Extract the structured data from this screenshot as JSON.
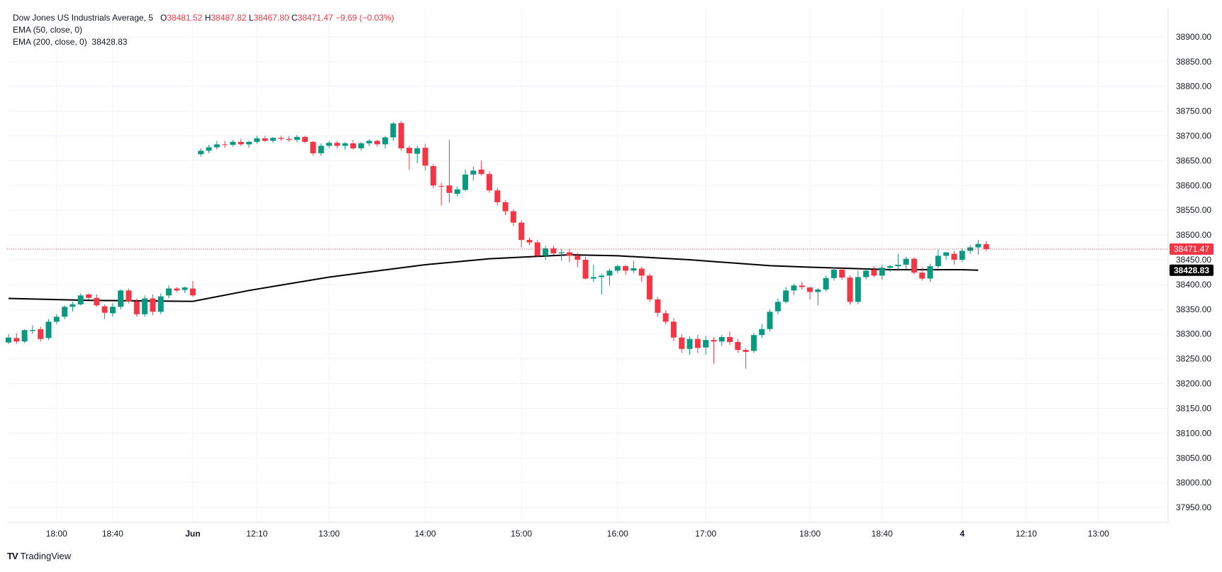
{
  "header": {
    "symbol": "Dow Jones US Industrials Average",
    "interval": "5",
    "open_label": "O",
    "open": "38481.52",
    "high_label": "H",
    "high": "38487.82",
    "low_label": "L",
    "low": "38467.80",
    "close_label": "C",
    "close": "38471.47",
    "change": "−9.69 (−0.03%)",
    "ema50_label": "EMA (50, close, 0)",
    "ema200_label": "EMA (200, close, 0)",
    "ema200_value": "38428.83"
  },
  "branding": {
    "logo_text": "TV",
    "name": "TradingView"
  },
  "colors": {
    "up": "#089981",
    "down": "#f23645",
    "ema": "#000000",
    "grid": "#f0f3fa",
    "axis_text": "#131722",
    "price_line": "#f23645"
  },
  "chart_data": {
    "type": "candlestick",
    "title": "Dow Jones US Industrials Average, 5",
    "ylim": [
      37920,
      38960
    ],
    "y_ticks": [
      38900,
      38850,
      38800,
      38750,
      38700,
      38650,
      38600,
      38550,
      38500,
      38450,
      38400,
      38350,
      38300,
      38250,
      38200,
      38150,
      38100,
      38050,
      38000,
      37950
    ],
    "y_tick_labels": [
      "38900.00",
      "38850.00",
      "38800.00",
      "38750.00",
      "38700.00",
      "38650.00",
      "38600.00",
      "38550.00",
      "38500.00",
      "38450.00",
      "38400.00",
      "38350.00",
      "38300.00",
      "38250.00",
      "38200.00",
      "38150.00",
      "38100.00",
      "38050.00",
      "38000.00",
      "37950.00"
    ],
    "x_ticks": [
      "18:00",
      "18:40",
      "Jun",
      "12:10",
      "13:00",
      "14:00",
      "15:00",
      "16:00",
      "17:00",
      "18:00",
      "18:40",
      "4",
      "12:10",
      "13:00"
    ],
    "x_tick_bar_index": [
      6,
      13,
      23,
      31,
      40,
      52,
      64,
      76,
      87,
      100,
      109,
      119,
      127,
      136
    ],
    "last_price_label": "38471.47",
    "ema200_label": "38428.83",
    "candles": [
      [
        38283,
        38300,
        38280,
        38293
      ],
      [
        38292,
        38302,
        38280,
        38285
      ],
      [
        38285,
        38310,
        38282,
        38308
      ],
      [
        38306,
        38318,
        38300,
        38308
      ],
      [
        38310,
        38315,
        38285,
        38290
      ],
      [
        38292,
        38330,
        38288,
        38325
      ],
      [
        38325,
        38340,
        38320,
        38335
      ],
      [
        38335,
        38358,
        38330,
        38355
      ],
      [
        38355,
        38365,
        38345,
        38360
      ],
      [
        38360,
        38382,
        38358,
        38378
      ],
      [
        38380,
        38382,
        38370,
        38373
      ],
      [
        38373,
        38380,
        38355,
        38358
      ],
      [
        38356,
        38360,
        38330,
        38343
      ],
      [
        38342,
        38362,
        38335,
        38355
      ],
      [
        38355,
        38390,
        38350,
        38388
      ],
      [
        38388,
        38392,
        38362,
        38366
      ],
      [
        38366,
        38372,
        38335,
        38340
      ],
      [
        38340,
        38378,
        38335,
        38372
      ],
      [
        38372,
        38380,
        38338,
        38345
      ],
      [
        38345,
        38382,
        38340,
        38376
      ],
      [
        38378,
        38398,
        38372,
        38392
      ],
      [
        38392,
        38395,
        38384,
        38388
      ],
      [
        38389,
        38396,
        38383,
        38394
      ],
      [
        38392,
        38407,
        38375,
        38378
      ],
      [
        38663,
        38675,
        38658,
        38670
      ],
      [
        38670,
        38682,
        38665,
        38677
      ],
      [
        38677,
        38690,
        38672,
        38683
      ],
      [
        38683,
        38690,
        38676,
        38682
      ],
      [
        38682,
        38692,
        38678,
        38688
      ],
      [
        38688,
        38694,
        38680,
        38683
      ],
      [
        38683,
        38690,
        38676,
        38688
      ],
      [
        38688,
        38700,
        38684,
        38695
      ],
      [
        38695,
        38700,
        38688,
        38690
      ],
      [
        38690,
        38698,
        38686,
        38696
      ],
      [
        38696,
        38700,
        38690,
        38694
      ],
      [
        38694,
        38700,
        38688,
        38692
      ],
      [
        38692,
        38702,
        38687,
        38698
      ],
      [
        38698,
        38700,
        38685,
        38688
      ],
      [
        38688,
        38690,
        38660,
        38665
      ],
      [
        38665,
        38685,
        38660,
        38680
      ],
      [
        38680,
        38690,
        38675,
        38686
      ],
      [
        38686,
        38690,
        38675,
        38680
      ],
      [
        38680,
        38688,
        38672,
        38685
      ],
      [
        38685,
        38692,
        38672,
        38675
      ],
      [
        38675,
        38688,
        38670,
        38685
      ],
      [
        38685,
        38693,
        38680,
        38690
      ],
      [
        38690,
        38692,
        38678,
        38683
      ],
      [
        38683,
        38700,
        38674,
        38697
      ],
      [
        38697,
        38728,
        38690,
        38725
      ],
      [
        38726,
        38730,
        38670,
        38675
      ],
      [
        38676,
        38680,
        38632,
        38665
      ],
      [
        38664,
        38680,
        38645,
        38675
      ],
      [
        38676,
        38684,
        38630,
        38640
      ],
      [
        38639,
        38643,
        38595,
        38600
      ],
      [
        38599,
        38605,
        38560,
        38598
      ],
      [
        38600,
        38692,
        38565,
        38585
      ],
      [
        38583,
        38598,
        38578,
        38592
      ],
      [
        38591,
        38632,
        38588,
        38622
      ],
      [
        38622,
        38638,
        38610,
        38630
      ],
      [
        38632,
        38650,
        38620,
        38623
      ],
      [
        38623,
        38628,
        38585,
        38590
      ],
      [
        38590,
        38595,
        38560,
        38566
      ],
      [
        38566,
        38570,
        38540,
        38548
      ],
      [
        38548,
        38552,
        38518,
        38525
      ],
      [
        38525,
        38530,
        38475,
        38490
      ],
      [
        38490,
        38495,
        38480,
        38485
      ],
      [
        38485,
        38490,
        38455,
        38458
      ],
      [
        38458,
        38478,
        38450,
        38473
      ],
      [
        38473,
        38478,
        38460,
        38463
      ],
      [
        38463,
        38472,
        38448,
        38465
      ],
      [
        38465,
        38472,
        38445,
        38458
      ],
      [
        38458,
        38464,
        38435,
        38450
      ],
      [
        38450,
        38456,
        38410,
        38412
      ],
      [
        38412,
        38440,
        38405,
        38415
      ],
      [
        38415,
        38422,
        38380,
        38418
      ],
      [
        38418,
        38432,
        38398,
        38428
      ],
      [
        38428,
        38440,
        38423,
        38437
      ],
      [
        38437,
        38440,
        38420,
        38428
      ],
      [
        38428,
        38448,
        38423,
        38433
      ],
      [
        38432,
        38436,
        38405,
        38418
      ],
      [
        38418,
        38422,
        38365,
        38370
      ],
      [
        38370,
        38375,
        38335,
        38343
      ],
      [
        38342,
        38348,
        38320,
        38325
      ],
      [
        38325,
        38332,
        38285,
        38293
      ],
      [
        38293,
        38300,
        38262,
        38270
      ],
      [
        38270,
        38295,
        38258,
        38290
      ],
      [
        38290,
        38298,
        38262,
        38272
      ],
      [
        38273,
        38296,
        38258,
        38288
      ],
      [
        38288,
        38294,
        38240,
        38285
      ],
      [
        38285,
        38298,
        38276,
        38294
      ],
      [
        38294,
        38305,
        38278,
        38284
      ],
      [
        38284,
        38290,
        38262,
        38268
      ],
      [
        38268,
        38272,
        38230,
        38264
      ],
      [
        38266,
        38302,
        38262,
        38298
      ],
      [
        38298,
        38320,
        38292,
        38310
      ],
      [
        38310,
        38350,
        38305,
        38345
      ],
      [
        38346,
        38372,
        38340,
        38365
      ],
      [
        38365,
        38395,
        38362,
        38388
      ],
      [
        38388,
        38402,
        38378,
        38398
      ],
      [
        38398,
        38405,
        38390,
        38395
      ],
      [
        38394,
        38396,
        38370,
        38385
      ],
      [
        38385,
        38393,
        38358,
        38390
      ],
      [
        38390,
        38418,
        38386,
        38413
      ],
      [
        38413,
        38435,
        38408,
        38430
      ],
      [
        38430,
        38436,
        38410,
        38414
      ],
      [
        38414,
        38418,
        38360,
        38365
      ],
      [
        38365,
        38428,
        38360,
        38415
      ],
      [
        38415,
        38432,
        38410,
        38428
      ],
      [
        38430,
        38437,
        38415,
        38418
      ],
      [
        38418,
        38440,
        38410,
        38434
      ],
      [
        38434,
        38440,
        38425,
        38437
      ],
      [
        38437,
        38462,
        38430,
        38440
      ],
      [
        38440,
        38456,
        38432,
        38452
      ],
      [
        38452,
        38455,
        38420,
        38424
      ],
      [
        38424,
        38435,
        38408,
        38412
      ],
      [
        38412,
        38442,
        38405,
        38437
      ],
      [
        38437,
        38470,
        38433,
        38458
      ],
      [
        38458,
        38465,
        38450,
        38465
      ],
      [
        38462,
        38468,
        38440,
        38450
      ],
      [
        38450,
        38473,
        38446,
        38468
      ],
      [
        38468,
        38480,
        38462,
        38475
      ],
      [
        38475,
        38490,
        38460,
        38482
      ],
      [
        38481.52,
        38487.82,
        38467.8,
        38471.47
      ]
    ],
    "ema200": [
      [
        0,
        38372
      ],
      [
        10,
        38368
      ],
      [
        23,
        38366
      ],
      [
        30,
        38388
      ],
      [
        40,
        38415
      ],
      [
        52,
        38440
      ],
      [
        60,
        38452
      ],
      [
        70,
        38460
      ],
      [
        76,
        38458
      ],
      [
        85,
        38450
      ],
      [
        95,
        38438
      ],
      [
        100,
        38435
      ],
      [
        110,
        38430
      ],
      [
        119,
        38430
      ],
      [
        121,
        38428.83
      ]
    ]
  }
}
